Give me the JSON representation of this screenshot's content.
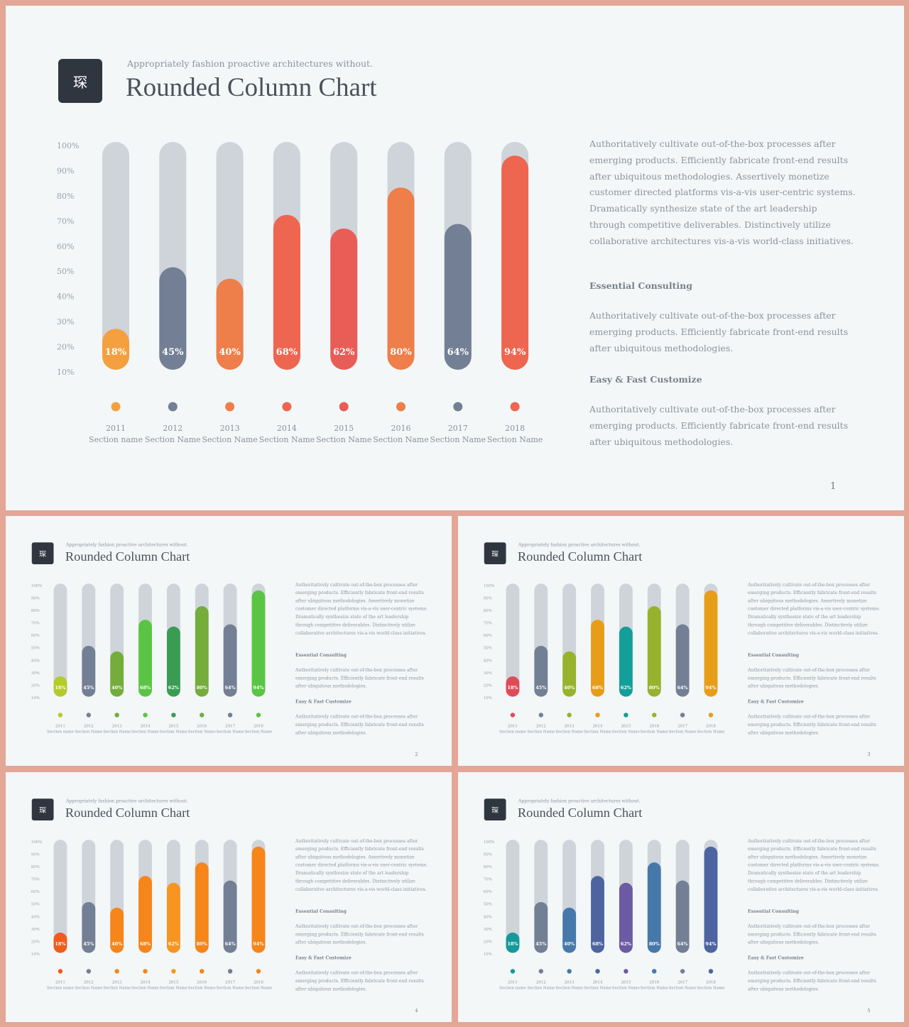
{
  "slide_header": {
    "logo_char": "琛",
    "subtitle": "Appropriately fashion proactive architectures without.",
    "title": "Rounded Column Chart"
  },
  "side_text": {
    "intro": "Authoritatively cultivate out-of-the-box processes after emerging products. Efficiently fabricate front-end results after ubiquitous methodologies. Assertively monetize customer directed platforms vis-a-vis user-centric systems. Dramatically synthesize state of the art leadership through competitive deliverables. Distinctively utilize collaborative architectures vis-a-vis world-class initiatives.",
    "heading_1": "Essential Consulting",
    "para_1": "Authoritatively cultivate out-of-the-box processes after emerging products. Efficiently fabricate front-end results after ubiquitous methodologies.",
    "heading_2": "Easy & Fast Customize",
    "para_2": "Authoritatively cultivate out-of-the-box processes after emerging products. Efficiently fabricate front-end results after ubiquitous methodologies."
  },
  "slides": [
    {
      "page": "1",
      "colors": [
        "#f4a03f",
        "#737f94",
        "#ee7e4a",
        "#ee6550",
        "#e95d57",
        "#ee7e4a",
        "#737f94",
        "#ee6550"
      ]
    },
    {
      "page": "2",
      "colors": [
        "#b4cb2a",
        "#737f94",
        "#74ad3b",
        "#5ac544",
        "#3a9c52",
        "#74ad3b",
        "#737f94",
        "#5ac544"
      ]
    },
    {
      "page": "3",
      "colors": [
        "#e04b58",
        "#737f94",
        "#97b22d",
        "#e89d19",
        "#139f99",
        "#97b22d",
        "#737f94",
        "#e89d19"
      ]
    },
    {
      "page": "4",
      "colors": [
        "#f15b1c",
        "#737f94",
        "#f6851a",
        "#f6851a",
        "#f79520",
        "#f6851a",
        "#737f94",
        "#f6851a"
      ]
    },
    {
      "page": "5",
      "colors": [
        "#15999b",
        "#737f94",
        "#4679aa",
        "#4d64a0",
        "#6c5aa2",
        "#4679aa",
        "#737f94",
        "#4d64a0"
      ]
    }
  ],
  "chart_data": {
    "type": "bar",
    "categories": [
      "2011",
      "2012",
      "2013",
      "2014",
      "2015",
      "2016",
      "2017",
      "2018"
    ],
    "category_sublabels": [
      "Section name",
      "Section Name",
      "Section Name",
      "Section Name",
      "Section Name",
      "Section Name",
      "Section Name",
      "Section Name"
    ],
    "values": [
      18,
      45,
      40,
      68,
      62,
      80,
      64,
      94
    ],
    "value_labels": [
      "18%",
      "45%",
      "40%",
      "68%",
      "62%",
      "80%",
      "64%",
      "94%"
    ],
    "ylim": [
      10,
      100
    ],
    "yticks": [
      "100%",
      "90%",
      "80%",
      "70%",
      "60%",
      "50%",
      "40%",
      "30%",
      "20%",
      "10%"
    ],
    "track_color": "#cfd4da"
  }
}
